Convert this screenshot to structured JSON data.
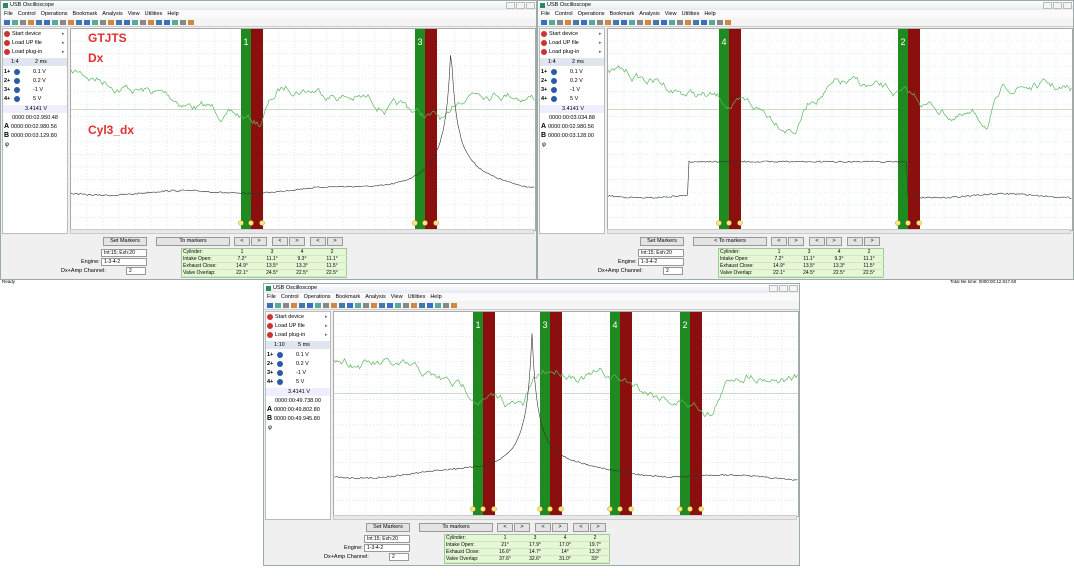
{
  "status": {
    "left": "Ready",
    "right": "Total file time: 0000:00:12.817.60"
  },
  "windows": [
    {
      "title": "USB Oscilloscope",
      "menu": [
        "File",
        "Control",
        "Operations",
        "Bookmark",
        "Analysis",
        "View",
        "Utilities",
        "Help"
      ],
      "sidebar": {
        "start": "Start device",
        "load": "Load UP file",
        "plugin": "Load plug-in",
        "zoom": "1:4",
        "time": "2 ms",
        "channels": [
          {
            "id": "1+",
            "label": "0.1 V"
          },
          {
            "id": "2+",
            "label": "0.2 V"
          },
          {
            "id": "3+",
            "label": "-1 V"
          },
          {
            "id": "4+",
            "label": "5 V"
          }
        ],
        "voltage": "3.4141 V",
        "cursor": "0000:00:02.950.48",
        "a": "0000:00:02.980.56",
        "b": "0000:00:03.129.80",
        "phi": "φ"
      },
      "annotations": [
        "GTJTS",
        "Dx",
        "Cyl3_dx"
      ],
      "markers": [
        "1",
        "3"
      ],
      "buttons": {
        "set": "Set Markers",
        "to": "To markers",
        "nav": [
          "<",
          ">",
          "<",
          ">",
          "<",
          ">"
        ]
      },
      "fields": {
        "int": "Int:15; Exh:20",
        "engine_label": "Engine:",
        "engine": "1-3-4-2",
        "channel_label": "Dx+Amp Channel:",
        "channel": "2"
      },
      "table": [
        [
          "Cylinder:",
          "1",
          "3",
          "4",
          "2"
        ],
        [
          "Intake Open:",
          "7.2°",
          "11.1°",
          "9.3°",
          "11.1°"
        ],
        [
          "Exhaust Close:",
          "14.9°",
          "13.5°",
          "13.3°",
          "11.5°"
        ],
        [
          "Valve Overlap:",
          "22.1°",
          "24.5°",
          "22.5°",
          "22.5°"
        ]
      ]
    },
    {
      "title": "USB Oscilloscope",
      "menu": [
        "File",
        "Control",
        "Operations",
        "Bookmark",
        "Analysis",
        "View",
        "Utilities",
        "Help"
      ],
      "sidebar": {
        "start": "Start device",
        "load": "Load UP file",
        "plugin": "Load plug-in",
        "zoom": "1:4",
        "time": "2 ms",
        "channels": [
          {
            "id": "1+",
            "label": "0.1 V"
          },
          {
            "id": "2+",
            "label": "0.2 V"
          },
          {
            "id": "3+",
            "label": "-1 V"
          },
          {
            "id": "4+",
            "label": "5 V"
          }
        ],
        "voltage": "3.4141 V",
        "cursor": "0000:00:03.034.88",
        "a": "0000:00:02.980.56",
        "b": "0000:00:03.128.00",
        "phi": "φ"
      },
      "annotations": [],
      "markers": [
        "4",
        "2"
      ],
      "buttons": {
        "set": "Set Markers",
        "to": "< To markers",
        "nav": [
          "<",
          ">",
          "<",
          ">",
          "<",
          ">"
        ]
      },
      "fields": {
        "int": "Int:15; Exh:20",
        "engine_label": "Engine:",
        "engine": "1-3-4-2",
        "channel_label": "Dx+Amp Channel:",
        "channel": "2"
      },
      "table": [
        [
          "Cylinder:",
          "1",
          "3",
          "4",
          "2"
        ],
        [
          "Intake Open:",
          "7.2°",
          "11.1°",
          "9.3°",
          "11.1°"
        ],
        [
          "Exhaust Close:",
          "14.9°",
          "13.5°",
          "13.3°",
          "11.5°"
        ],
        [
          "Valve Overlap:",
          "22.1°",
          "24.5°",
          "22.5°",
          "22.5°"
        ]
      ]
    },
    {
      "title": "USB Oscilloscope",
      "menu": [
        "File",
        "Control",
        "Operations",
        "Bookmark",
        "Analysis",
        "View",
        "Utilities",
        "Help"
      ],
      "sidebar": {
        "start": "Start device",
        "load": "Load UP file",
        "plugin": "Load plug-in",
        "zoom": "1:10",
        "time": "5 ms",
        "channels": [
          {
            "id": "1+",
            "label": "0.1 V"
          },
          {
            "id": "2+",
            "label": "0.2 V"
          },
          {
            "id": "3+",
            "label": "-1 V"
          },
          {
            "id": "4+",
            "label": "5 V"
          }
        ],
        "voltage": "3.4141 V",
        "cursor": "0000:00:49.738.00",
        "a": "0000:00:49.802.80",
        "b": "0000:00:49.945.80",
        "phi": "φ"
      },
      "annotations": [],
      "markers": [
        "1",
        "3",
        "4",
        "2"
      ],
      "buttons": {
        "set": "Set Markers",
        "to": "To markers",
        "nav": [
          "<",
          ">",
          "<",
          ">",
          "<",
          ">"
        ]
      },
      "fields": {
        "int": "Int:15; Exh:20",
        "engine_label": "Engine:",
        "engine": "1-3-4-2",
        "channel_label": "Dx+Amp Channel:",
        "channel": "2"
      },
      "table": [
        [
          "Cylinder:",
          "1",
          "3",
          "4",
          "2"
        ],
        [
          "Intake Open:",
          "21°",
          "17.9°",
          "17.0°",
          "19.7°"
        ],
        [
          "Exhaust Close:",
          "16.6°",
          "14.7°",
          "14°",
          "13.3°"
        ],
        [
          "Valve Overlap:",
          "37.6°",
          "32.6°",
          "31.0°",
          "33°"
        ]
      ]
    }
  ]
}
